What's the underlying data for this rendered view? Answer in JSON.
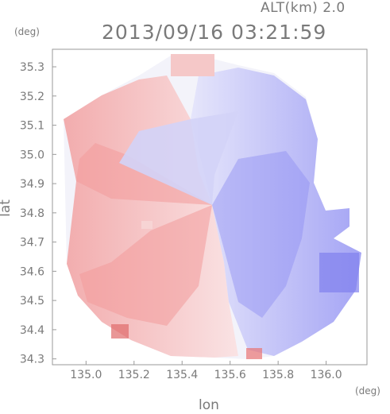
{
  "header": {
    "altitude_label": "ALT(km) 2.0",
    "timestamp": "2013/09/16 03:21:59"
  },
  "axes": {
    "y_unit": "(deg)",
    "x_unit": "(deg)",
    "y_label": "lat",
    "x_label": "lon",
    "y_ticks": [
      "35.3",
      "35.2",
      "35.1",
      "35.0",
      "34.9",
      "34.8",
      "34.7",
      "34.6",
      "34.5",
      "34.4",
      "34.3"
    ],
    "x_ticks": [
      "135.0",
      "135.2",
      "135.4",
      "135.6",
      "135.8",
      "136.0"
    ]
  },
  "map": {
    "xlim": [
      134.86,
      136.17
    ],
    "ylim": [
      34.28,
      35.36
    ],
    "radar_center": {
      "lon": 135.53,
      "lat": 34.82
    },
    "colors": {
      "approaching": "#8f8ff5",
      "receding": "#f4a2a2",
      "neutral": "#f6f6fb"
    }
  }
}
